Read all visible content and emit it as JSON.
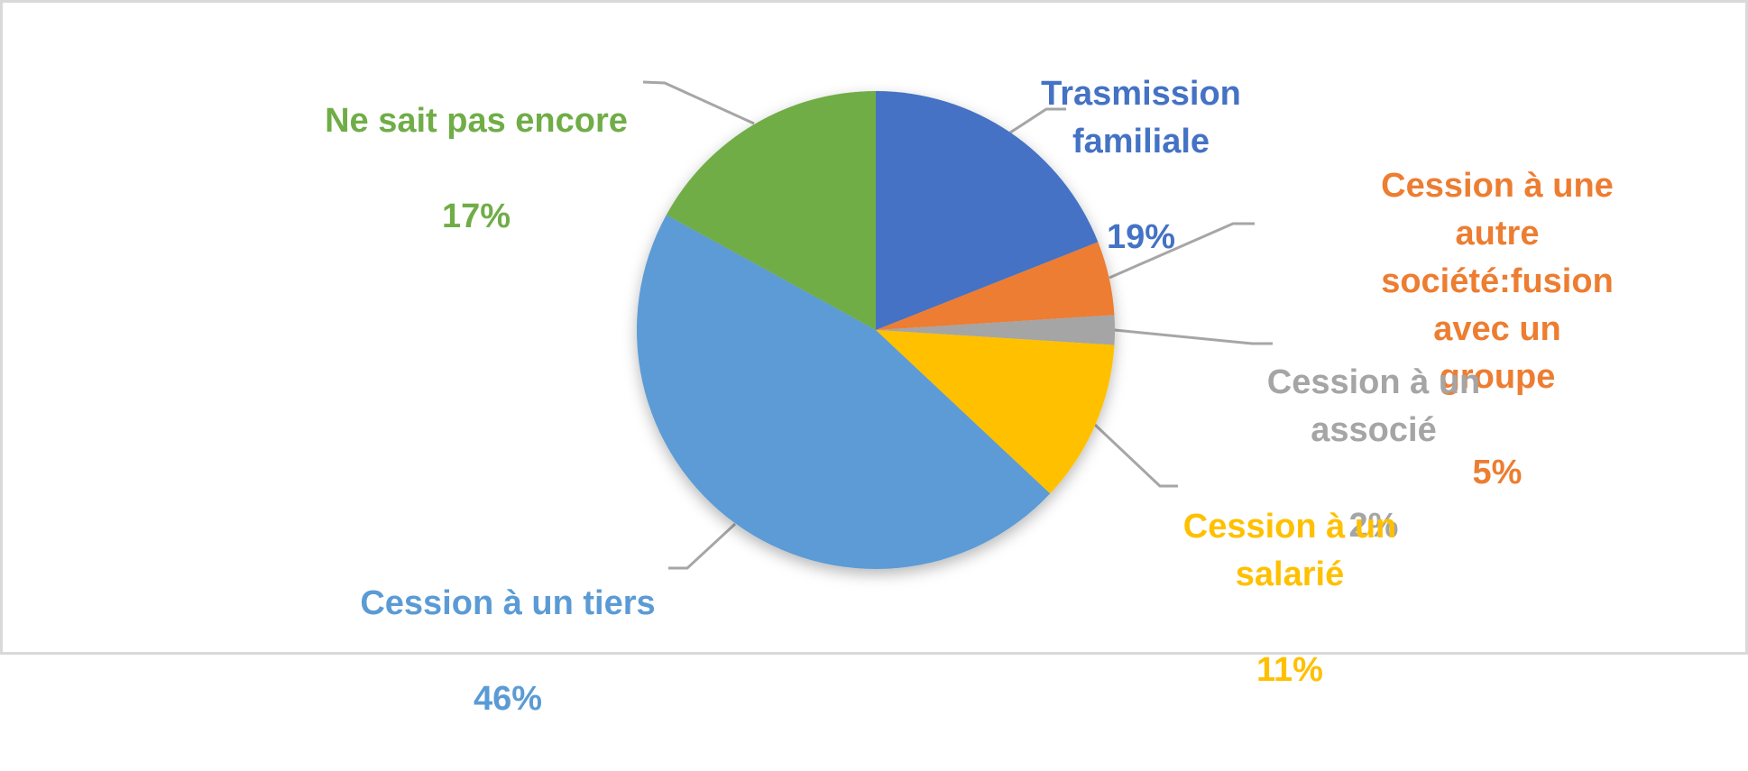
{
  "frame": {
    "background_color": "#ffffff",
    "border_color": "#d9d9d9"
  },
  "chart_data": {
    "type": "pie",
    "title": "",
    "start_angle_deg": 0,
    "direction": "clockwise",
    "legend_position": "none",
    "labels_style": "callout-labels-with-percentages",
    "leader_line_color": "#a6a6a6",
    "slices": [
      {
        "key": "familiale",
        "label": "Trasmission\nfamiliale",
        "pct_label": "19%",
        "value": 19,
        "color": "#4472C4"
      },
      {
        "key": "fusion",
        "label": "Cession à une autre\nsociété:fusion avec un\ngroupe",
        "pct_label": "5%",
        "value": 5,
        "color": "#ED7D31"
      },
      {
        "key": "associe",
        "label": "Cession à un\nassocié",
        "pct_label": "2%",
        "value": 2,
        "color": "#A5A5A5"
      },
      {
        "key": "salarie",
        "label": "Cession à un\nsalarié",
        "pct_label": "11%",
        "value": 11,
        "color": "#FFC000"
      },
      {
        "key": "tiers",
        "label": "Cession à un tiers",
        "pct_label": "46%",
        "value": 46,
        "color": "#5B9BD5"
      },
      {
        "key": "nesaitpas",
        "label": "Ne sait pas encore",
        "pct_label": "17%",
        "value": 17,
        "color": "#70AD47"
      }
    ]
  }
}
